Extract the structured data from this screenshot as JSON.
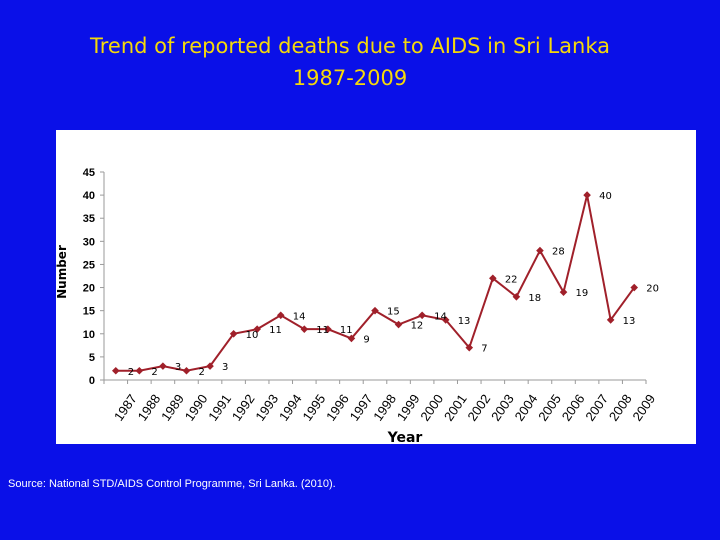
{
  "title_line1": "Trend of reported  deaths due to AIDS in Sri Lanka",
  "title_line2": "1987-2009",
  "source": "Source: National STD/AIDS Control Programme, Sri Lanka. (2010).",
  "colors": {
    "background": "#0a10e8",
    "title": "#f5d90a",
    "series": "#a0202a"
  },
  "chart_data": {
    "type": "line",
    "xlabel": "Year",
    "ylabel": "Number",
    "ylim": [
      0,
      45
    ],
    "yticks": [
      "0",
      "5",
      "10",
      "15",
      "20",
      "25",
      "30",
      "35",
      "40",
      "45"
    ],
    "grid": false,
    "x": [
      "1987",
      "1988",
      "1989",
      "1990",
      "1991",
      "1992",
      "1993",
      "1994",
      "1995",
      "1996",
      "1997",
      "1998",
      "1999",
      "2000",
      "2001",
      "2002",
      "2003",
      "2004",
      "2005",
      "2006",
      "2007",
      "2008",
      "2009"
    ],
    "series": [
      {
        "values": [
          2,
          2,
          3,
          2,
          3,
          10,
          11,
          14,
          11,
          11,
          9,
          15,
          12,
          14,
          13,
          7,
          22,
          18,
          28,
          19,
          40,
          13,
          20
        ],
        "labels": [
          "2",
          "2",
          "3",
          "2",
          "3",
          "10",
          "11",
          "14",
          "11",
          "11",
          "9",
          "15",
          "12",
          "14",
          "13",
          "7",
          "22",
          "18",
          "28",
          "19",
          "40",
          "13",
          "20"
        ]
      }
    ]
  }
}
